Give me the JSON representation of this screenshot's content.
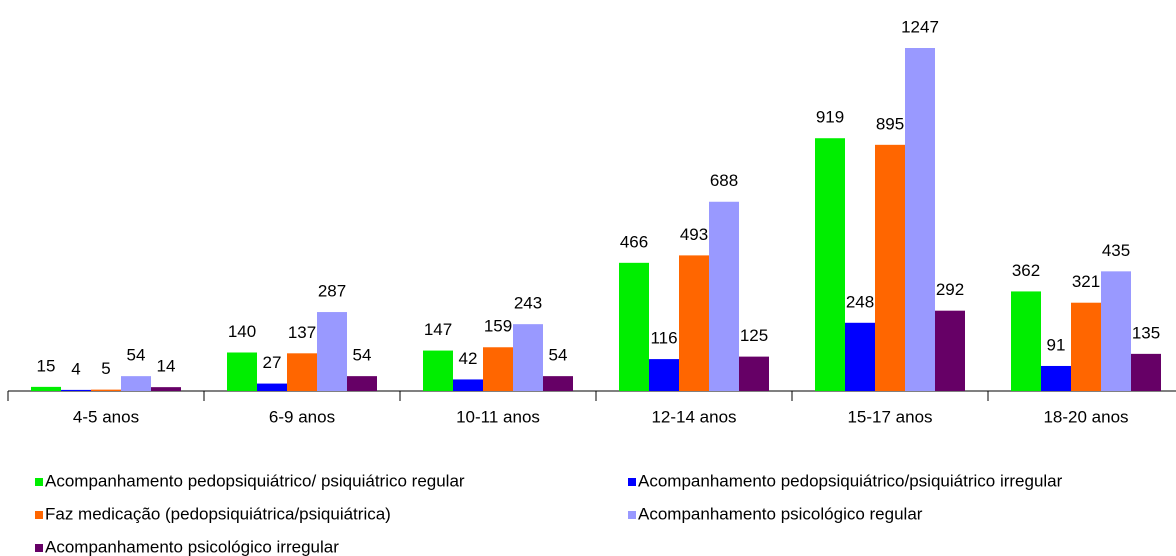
{
  "chart_data": {
    "type": "bar",
    "categories": [
      "4-5 anos",
      "6-9 anos",
      "10-11 anos",
      "12-14 anos",
      "15-17 anos",
      "18-20 anos"
    ],
    "series": [
      {
        "name": "Acompanhamento pedopsiquiátrico/ psiquiátrico regular",
        "color": "#00ee00",
        "values": [
          15,
          140,
          147,
          466,
          919,
          362
        ]
      },
      {
        "name": "Acompanhamento pedopsiquiátrico/psiquiátrico irregular",
        "color": "#0000ff",
        "values": [
          4,
          27,
          42,
          116,
          248,
          91
        ]
      },
      {
        "name": "Faz medicação (pedopsiquiátrica/psiquiátrica)",
        "color": "#ff6600",
        "values": [
          5,
          137,
          159,
          493,
          895,
          321
        ]
      },
      {
        "name": "Acompanhamento psicológico regular",
        "color": "#9999ff",
        "values": [
          54,
          287,
          243,
          688,
          1247,
          435
        ]
      },
      {
        "name": "Acompanhamento psicológico irregular",
        "color": "#660066",
        "values": [
          14,
          54,
          54,
          125,
          292,
          135
        ]
      }
    ]
  }
}
